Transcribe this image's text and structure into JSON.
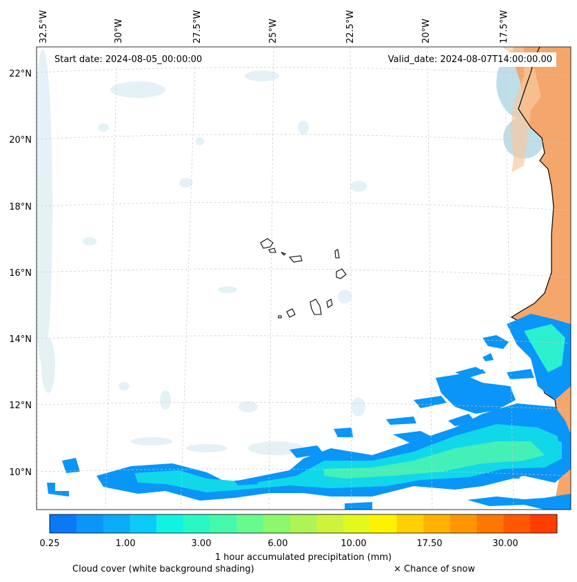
{
  "map": {
    "start_date": "Start date: 2024-08-05_00:00:00",
    "valid_date": "Valid_date: 2024-08-07T14:00:00.00",
    "lon_labels": [
      "32.5°W",
      "30°W",
      "27.5°W",
      "25°W",
      "22.5°W",
      "20°W",
      "17.5°W"
    ],
    "lat_labels": [
      "22°N",
      "20°N",
      "18°N",
      "16°N",
      "14°N",
      "12°N",
      "10°N"
    ],
    "land_color": "#f4a96b",
    "cloud_color": "#bfe0ea"
  },
  "colorbar": {
    "tick_labels": [
      "0.25",
      "1.00",
      "3.00",
      "6.00",
      "10.00",
      "17.50",
      "30.00"
    ],
    "colors": [
      "#0a79f6",
      "#0a95f8",
      "#0aabf7",
      "#0acbf7",
      "#11f2e3",
      "#2af8c4",
      "#44f9ab",
      "#67fa8c",
      "#8bf86e",
      "#aef454",
      "#cef43a",
      "#e3f81c",
      "#fff200",
      "#ffd000",
      "#ffb300",
      "#ff9600",
      "#ff7600",
      "#ff5800",
      "#ff3d00"
    ],
    "label": "1 hour accumulated precipitation (mm)"
  },
  "legend": {
    "cloud_note": "Cloud cover (white background shading)",
    "snow_note": "× Chance of snow"
  }
}
